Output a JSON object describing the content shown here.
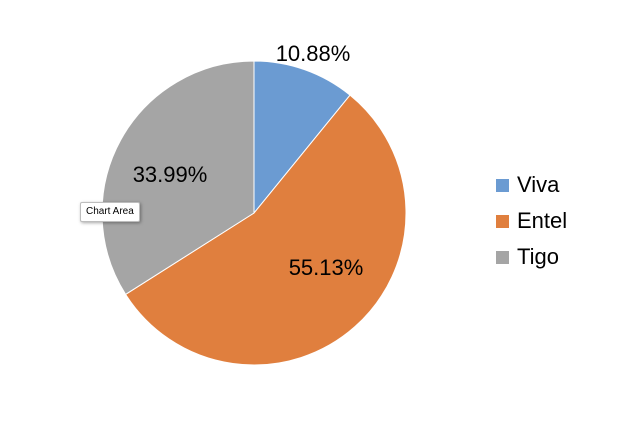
{
  "chart_data": {
    "type": "pie",
    "categories": [
      "Viva",
      "Entel",
      "Tigo"
    ],
    "values": [
      10.88,
      55.13,
      33.99
    ],
    "data_labels": [
      "10.88%",
      "55.13%",
      "33.99%"
    ],
    "colors": [
      "#6b9bd2",
      "#e07f3e",
      "#a5a5a5"
    ],
    "legend_position": "right",
    "start_angle": "12 o'clock",
    "direction": "clockwise"
  },
  "tooltip": {
    "text": "Chart Area"
  }
}
